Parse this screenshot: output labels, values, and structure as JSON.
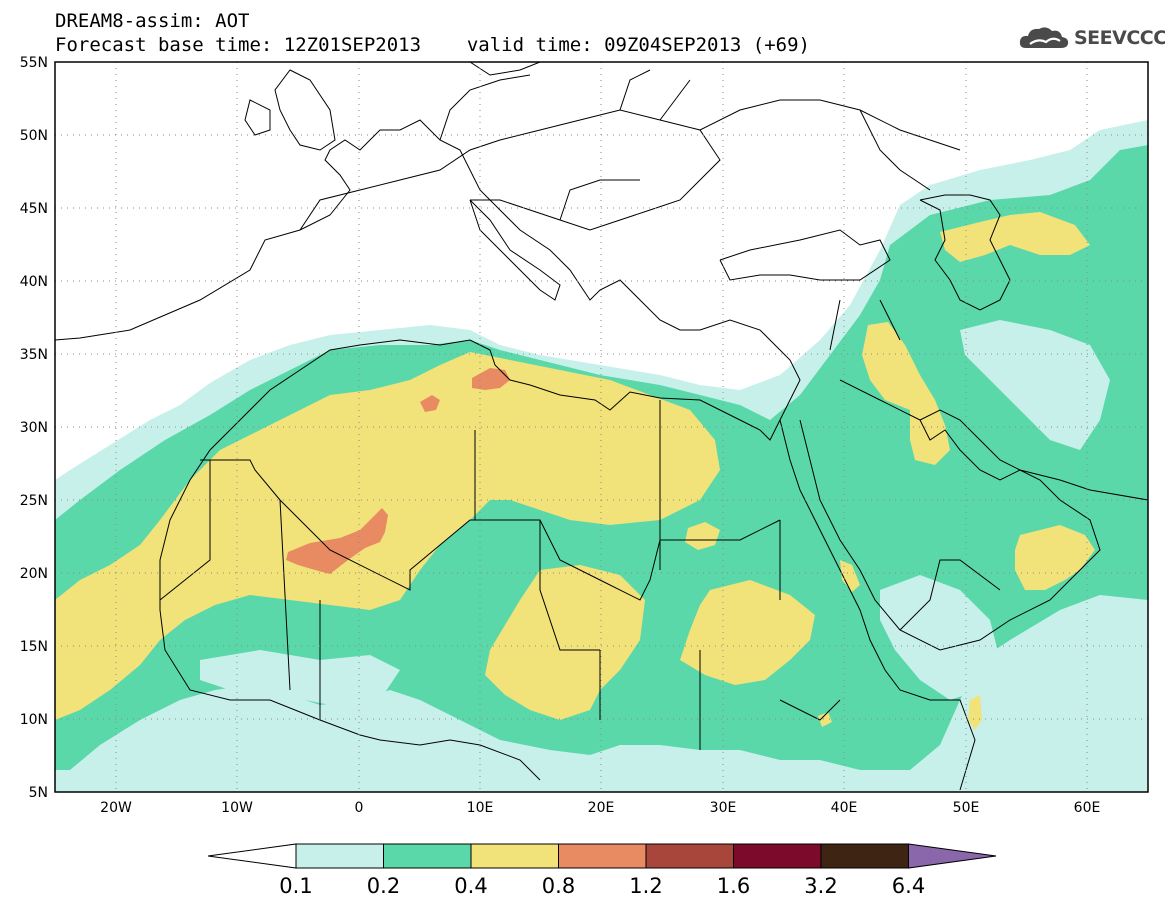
{
  "title": {
    "line1": "DREAM8-assim: AOT",
    "line2_base": "Forecast base time: 12Z01SEP2013",
    "line2_valid": "valid time: 09Z04SEP2013 (+69)"
  },
  "logo": {
    "text": "SEEVCCC",
    "icon": "cloud-icon"
  },
  "map": {
    "lon_range": [
      -25,
      65
    ],
    "lat_range": [
      5,
      55
    ],
    "lat_ticks": [
      "55N",
      "50N",
      "45N",
      "40N",
      "35N",
      "30N",
      "25N",
      "20N",
      "15N",
      "10N",
      "5N"
    ],
    "lon_ticks": [
      "20W",
      "10W",
      "0",
      "10E",
      "20E",
      "30E",
      "40E",
      "50E",
      "60E"
    ],
    "grid": "dotted"
  },
  "colorbar": {
    "labels": [
      "0.1",
      "0.2",
      "0.4",
      "0.8",
      "1.2",
      "1.6",
      "3.2",
      "6.4"
    ],
    "colors": [
      "#c8f0eb",
      "#5ad8aa",
      "#f2e27a",
      "#e88b63",
      "#a8463c",
      "#7c0a2a",
      "#3e2412",
      "#8a66aa"
    ],
    "under_color": "#ffffff"
  }
}
